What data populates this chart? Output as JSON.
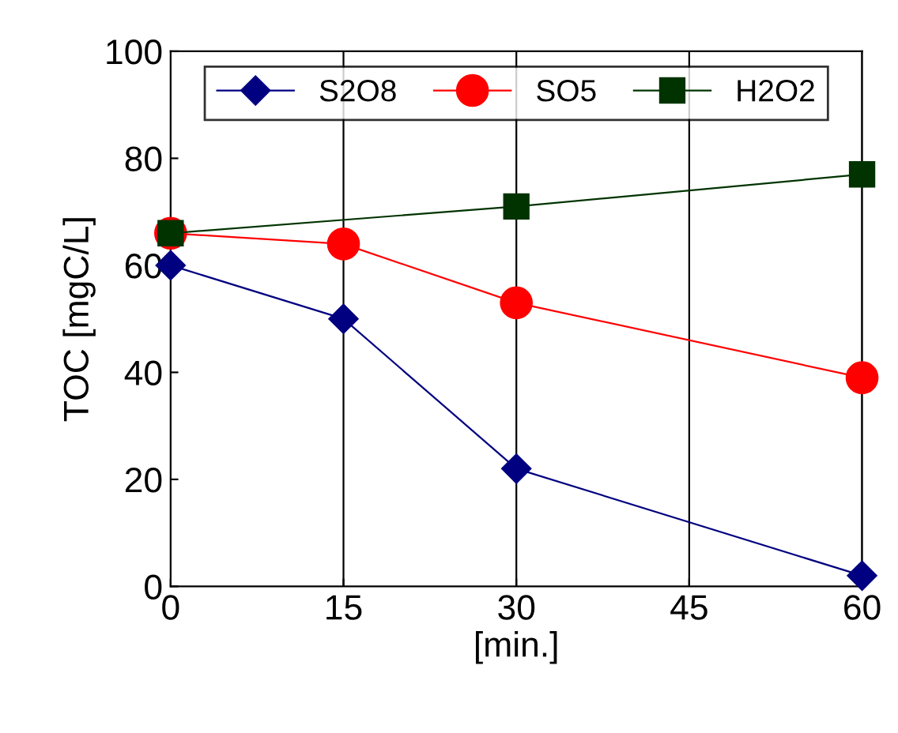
{
  "chart_data": {
    "type": "line",
    "xlabel": "[min.]",
    "ylabel": "TOC [mgC/L]",
    "x": [
      0,
      15,
      30,
      60
    ],
    "series": [
      {
        "name": "S2O8",
        "color": "#000080",
        "marker": "diamond",
        "values": [
          60,
          50,
          22,
          2
        ]
      },
      {
        "name": "SO5",
        "color": "#ff0000",
        "marker": "circle",
        "values": [
          66,
          64,
          53,
          39
        ]
      },
      {
        "name": "H2O2",
        "color": "#003300",
        "marker": "square",
        "x": [
          0,
          30,
          60
        ],
        "values": [
          66,
          71,
          77
        ]
      }
    ],
    "xlim": [
      0,
      60
    ],
    "xticks": [
      0,
      15,
      30,
      45,
      60
    ],
    "ylim": [
      0,
      100
    ],
    "yticks": [
      0,
      20,
      40,
      60,
      80,
      100
    ],
    "grid": "x",
    "legend": "top",
    "line_style": "solid"
  }
}
